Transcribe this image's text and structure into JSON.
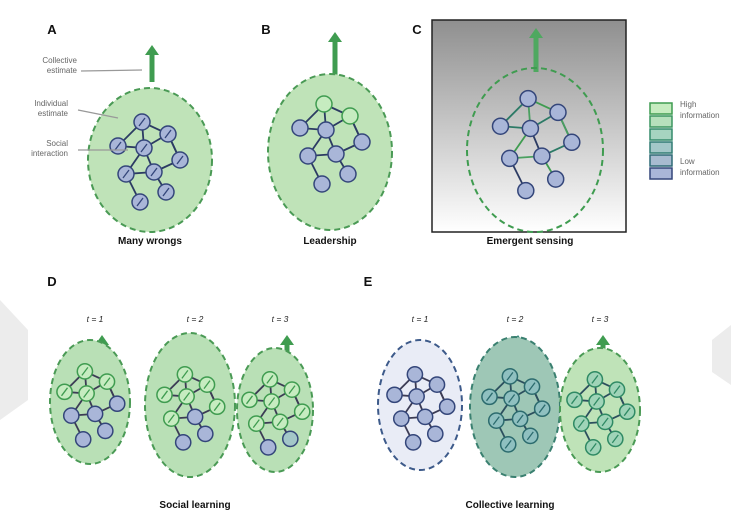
{
  "panels": [
    {
      "letter": "A",
      "caption": "Many wrongs"
    },
    {
      "letter": "B",
      "caption": "Leadership"
    },
    {
      "letter": "C",
      "caption": "Emergent sensing"
    },
    {
      "letter": "D",
      "caption": "Social learning",
      "steps": [
        "t = 1",
        "t = 2",
        "t = 3"
      ]
    },
    {
      "letter": "E",
      "caption": "Collective learning",
      "steps": [
        "t = 1",
        "t = 2",
        "t = 3"
      ]
    }
  ],
  "annotations": [
    {
      "lines": [
        "Collective",
        "estimate"
      ]
    },
    {
      "lines": [
        "Individual",
        "estimate"
      ]
    },
    {
      "lines": [
        "Social",
        "interaction"
      ]
    }
  ],
  "legend": [
    {
      "lines": [
        "High",
        "information"
      ]
    },
    {
      "lines": [
        "Low",
        "information"
      ]
    }
  ]
}
